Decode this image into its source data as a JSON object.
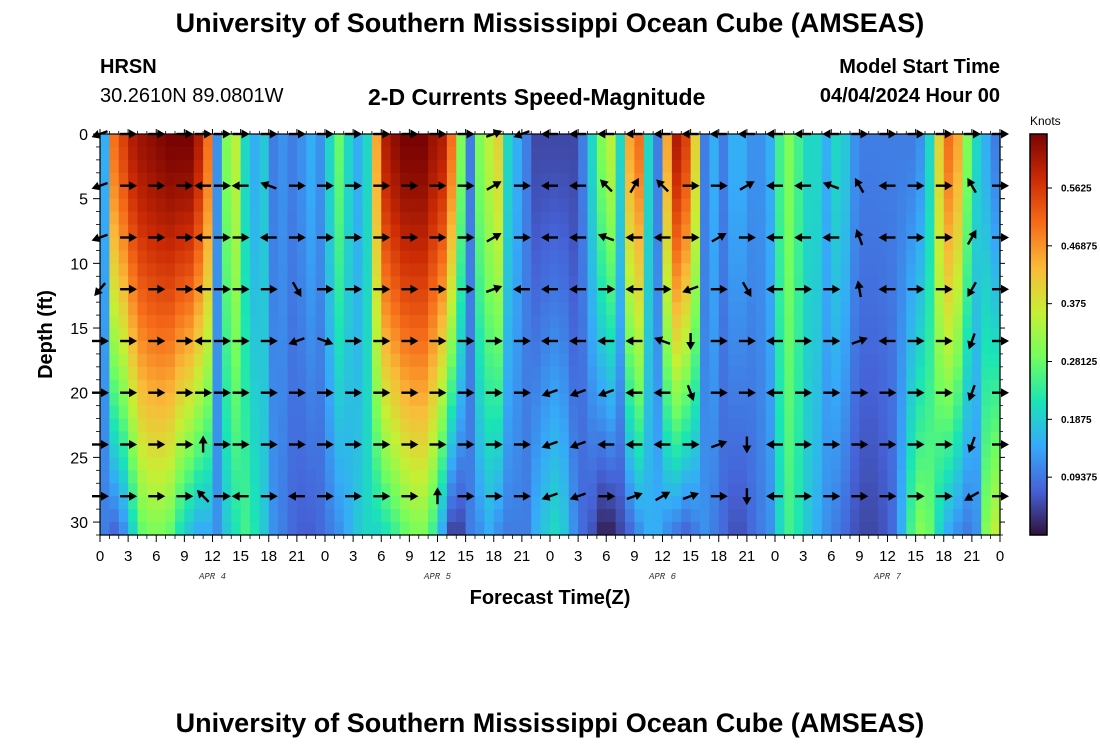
{
  "header": {
    "title": "University of Southern Mississippi Ocean Cube (AMSEAS)",
    "footer_title": "University of Southern Mississippi Ocean Cube (AMSEAS)",
    "station_name": "HRSN",
    "station_coords": "30.2610N  89.0801W",
    "model_start_label": "Model Start Time",
    "model_start_value": "04/04/2024 Hour 00"
  },
  "chart_data": {
    "type": "heatmap",
    "title": "2-D Currents Speed-Magnitude",
    "xlabel": "Forecast Time(Z)",
    "ylabel": "Depth (ft)",
    "x_unit": "forecast hour",
    "xlim": [
      0,
      96
    ],
    "ylim": [
      0,
      31
    ],
    "y_inverted": true,
    "x_ticks": [
      0,
      3,
      6,
      9,
      12,
      15,
      18,
      21,
      24,
      27,
      30,
      33,
      36,
      39,
      42,
      45,
      48,
      51,
      54,
      57,
      60,
      63,
      66,
      69,
      72,
      75,
      78,
      81,
      84,
      87,
      90,
      93,
      96
    ],
    "x_tick_labels": [
      "0",
      "3",
      "6",
      "9",
      "12",
      "15",
      "18",
      "21",
      "0",
      "3",
      "6",
      "9",
      "12",
      "15",
      "18",
      "21",
      "0",
      "3",
      "6",
      "9",
      "12",
      "15",
      "18",
      "21",
      "0",
      "3",
      "6",
      "9",
      "12",
      "15",
      "18",
      "21",
      "0"
    ],
    "y_ticks": [
      0,
      5,
      10,
      15,
      20,
      25,
      30
    ],
    "y_tick_labels": [
      "0",
      "5",
      "10",
      "15",
      "20",
      "25",
      "30"
    ],
    "date_labels": [
      {
        "text": "APR 4",
        "hour": 12
      },
      {
        "text": "APR 5",
        "hour": 36
      },
      {
        "text": "APR 6",
        "hour": 60
      },
      {
        "text": "APR 7",
        "hour": 84
      }
    ],
    "colorbar": {
      "unit": "Knots",
      "range": [
        0,
        0.65
      ],
      "ticks": [
        0.09375,
        0.1875,
        0.28125,
        0.375,
        0.46875,
        0.5625
      ],
      "tick_labels": [
        "0.09375",
        "0.1875",
        "0.28125",
        "0.375",
        "0.46875",
        "0.5625"
      ],
      "colors": [
        "#30123b",
        "#4662d7",
        "#36aaf9",
        "#1ae4b6",
        "#72fe5e",
        "#c7ef34",
        "#faba39",
        "#f66b19",
        "#cb2a04",
        "#7a0403"
      ]
    },
    "speed_profile": {
      "hours": [
        0,
        1,
        2,
        3,
        4,
        5,
        6,
        7,
        8,
        9,
        10,
        11,
        12,
        13,
        14,
        15,
        16,
        17,
        18,
        19,
        20,
        21,
        22,
        23,
        24,
        25,
        26,
        27,
        28,
        29,
        30,
        31,
        32,
        33,
        34,
        35,
        36,
        37,
        38,
        39,
        40,
        41,
        42,
        43,
        44,
        45,
        46,
        47,
        48,
        49,
        50,
        51,
        52,
        53,
        54,
        55,
        56,
        57,
        58,
        59,
        60,
        61,
        62,
        63,
        64,
        65,
        66,
        67,
        68,
        69,
        70,
        71,
        72,
        73,
        74,
        75,
        76,
        77,
        78,
        79,
        80,
        81,
        82,
        83,
        84,
        85,
        86,
        87,
        88,
        89,
        90,
        91,
        92,
        93,
        94,
        95,
        96
      ],
      "surface": [
        0.15,
        0.5,
        0.55,
        0.6,
        0.62,
        0.63,
        0.64,
        0.65,
        0.65,
        0.65,
        0.6,
        0.5,
        0.12,
        0.3,
        0.35,
        0.2,
        0.15,
        0.18,
        0.1,
        0.12,
        0.1,
        0.12,
        0.15,
        0.12,
        0.2,
        0.28,
        0.2,
        0.15,
        0.2,
        0.45,
        0.6,
        0.63,
        0.65,
        0.65,
        0.65,
        0.62,
        0.6,
        0.5,
        0.3,
        0.1,
        0.3,
        0.35,
        0.4,
        0.2,
        0.15,
        0.1,
        0.05,
        0.05,
        0.05,
        0.05,
        0.05,
        0.1,
        0.2,
        0.3,
        0.35,
        0.2,
        0.45,
        0.5,
        0.2,
        0.1,
        0.45,
        0.6,
        0.55,
        0.4,
        0.1,
        0.15,
        0.1,
        0.15,
        0.15,
        0.12,
        0.12,
        0.15,
        0.25,
        0.3,
        0.25,
        0.2,
        0.2,
        0.15,
        0.2,
        0.18,
        0.12,
        0.1,
        0.1,
        0.1,
        0.1,
        0.1,
        0.1,
        0.12,
        0.2,
        0.4,
        0.5,
        0.45,
        0.3,
        0.2,
        0.15,
        0.1,
        0.1
      ],
      "bottom": [
        0.1,
        0.08,
        0.12,
        0.2,
        0.28,
        0.3,
        0.3,
        0.28,
        0.22,
        0.18,
        0.15,
        0.15,
        0.12,
        0.18,
        0.22,
        0.25,
        0.22,
        0.18,
        0.12,
        0.1,
        0.08,
        0.07,
        0.07,
        0.08,
        0.1,
        0.12,
        0.15,
        0.18,
        0.2,
        0.2,
        0.22,
        0.25,
        0.28,
        0.3,
        0.3,
        0.25,
        0.15,
        0.05,
        0.05,
        0.1,
        0.12,
        0.15,
        0.12,
        0.1,
        0.1,
        0.1,
        0.15,
        0.18,
        0.2,
        0.18,
        0.12,
        0.08,
        0.06,
        0.02,
        0.02,
        0.05,
        0.08,
        0.12,
        0.15,
        0.15,
        0.12,
        0.1,
        0.08,
        0.1,
        0.12,
        0.1,
        0.08,
        0.06,
        0.06,
        0.08,
        0.1,
        0.12,
        0.2,
        0.25,
        0.22,
        0.18,
        0.15,
        0.12,
        0.1,
        0.08,
        0.06,
        0.05,
        0.05,
        0.06,
        0.08,
        0.15,
        0.25,
        0.3,
        0.28,
        0.2,
        0.15,
        0.12,
        0.1,
        0.12,
        0.3,
        0.35,
        0.2
      ]
    },
    "vector_depths": [
      0,
      4,
      8,
      12,
      16,
      20,
      24,
      28
    ],
    "vector_hours": [
      0,
      3,
      6,
      9,
      11,
      13,
      15,
      18,
      21,
      24,
      27,
      30,
      33,
      36,
      39,
      42,
      45,
      48,
      51,
      54,
      57,
      60,
      63,
      66,
      69,
      72,
      75,
      78,
      81,
      84,
      87,
      90,
      93,
      96
    ],
    "vector_directions_deg": [
      [
        200,
        0,
        0,
        0,
        0,
        0,
        0,
        0,
        0,
        0,
        0,
        0,
        0,
        0,
        0,
        20,
        200,
        180,
        180,
        180,
        180,
        180,
        180,
        180,
        180,
        180,
        180,
        180,
        0,
        0,
        0,
        0,
        0,
        0
      ],
      [
        200,
        0,
        0,
        0,
        180,
        0,
        180,
        160,
        0,
        0,
        0,
        0,
        0,
        0,
        0,
        30,
        0,
        180,
        180,
        135,
        60,
        135,
        0,
        0,
        30,
        180,
        180,
        160,
        120,
        180,
        0,
        0,
        120,
        0
      ],
      [
        200,
        0,
        0,
        0,
        180,
        0,
        0,
        180,
        0,
        0,
        0,
        0,
        0,
        0,
        0,
        30,
        0,
        180,
        180,
        160,
        180,
        180,
        0,
        30,
        0,
        180,
        180,
        180,
        110,
        180,
        0,
        0,
        60,
        0
      ],
      [
        230,
        0,
        0,
        0,
        180,
        0,
        0,
        0,
        300,
        0,
        0,
        0,
        0,
        0,
        0,
        20,
        180,
        180,
        180,
        0,
        180,
        0,
        200,
        0,
        300,
        180,
        0,
        0,
        100,
        180,
        0,
        0,
        240,
        0
      ],
      [
        0,
        0,
        0,
        0,
        180,
        0,
        0,
        0,
        200,
        340,
        0,
        0,
        0,
        0,
        0,
        0,
        0,
        180,
        180,
        180,
        180,
        160,
        270,
        0,
        0,
        180,
        0,
        0,
        20,
        180,
        0,
        0,
        250,
        0
      ],
      [
        0,
        0,
        0,
        0,
        0,
        0,
        0,
        0,
        0,
        0,
        0,
        0,
        0,
        0,
        0,
        0,
        0,
        200,
        200,
        200,
        180,
        180,
        290,
        0,
        0,
        180,
        0,
        0,
        0,
        0,
        0,
        0,
        250,
        0
      ],
      [
        0,
        0,
        0,
        0,
        90,
        0,
        0,
        0,
        0,
        0,
        0,
        0,
        0,
        0,
        0,
        0,
        0,
        200,
        200,
        180,
        180,
        180,
        0,
        20,
        270,
        180,
        0,
        0,
        0,
        0,
        0,
        0,
        250,
        0
      ],
      [
        0,
        0,
        0,
        0,
        135,
        0,
        180,
        0,
        180,
        0,
        0,
        0,
        0,
        90,
        0,
        0,
        0,
        200,
        200,
        0,
        20,
        30,
        20,
        0,
        270,
        180,
        0,
        0,
        0,
        0,
        0,
        0,
        210,
        0
      ]
    ]
  }
}
